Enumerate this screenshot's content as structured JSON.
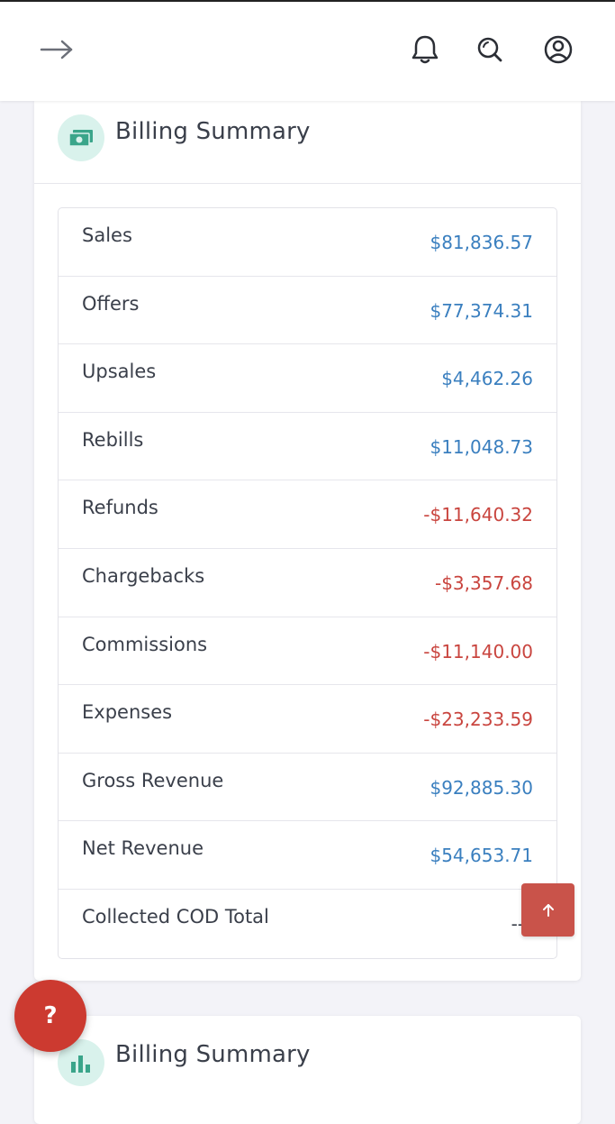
{
  "header": {
    "icons": [
      "arrow-right-icon",
      "bell-icon",
      "search-icon",
      "user-icon"
    ]
  },
  "billing_summary": {
    "title": "Billing Summary",
    "rows": [
      {
        "label": "Sales",
        "value": "$81,836.57",
        "tone": "pos"
      },
      {
        "label": "Offers",
        "value": "$77,374.31",
        "tone": "pos"
      },
      {
        "label": "Upsales",
        "value": "$4,462.26",
        "tone": "pos"
      },
      {
        "label": "Rebills",
        "value": "$11,048.73",
        "tone": "pos"
      },
      {
        "label": "Refunds",
        "value": "-$11,640.32",
        "tone": "neg"
      },
      {
        "label": "Chargebacks",
        "value": "-$3,357.68",
        "tone": "neg"
      },
      {
        "label": "Commissions",
        "value": "-$11,140.00",
        "tone": "neg"
      },
      {
        "label": "Expenses",
        "value": "-$23,233.59",
        "tone": "neg"
      },
      {
        "label": "Gross Revenue",
        "value": "$92,885.30",
        "tone": "pos"
      },
      {
        "label": "Net Revenue",
        "value": "$54,653.71",
        "tone": "pos"
      },
      {
        "label": "Collected COD Total",
        "value": "--",
        "tone": "none"
      }
    ]
  },
  "billing_summary_2": {
    "title": "Billing Summary"
  },
  "help_button": {
    "label": "?"
  },
  "colors": {
    "positive": "#3a7fbf",
    "negative": "#c9453f",
    "accent_teal": "#3aa58a",
    "help_red": "#cc3a30",
    "scroll_top_red": "#c9534a"
  }
}
